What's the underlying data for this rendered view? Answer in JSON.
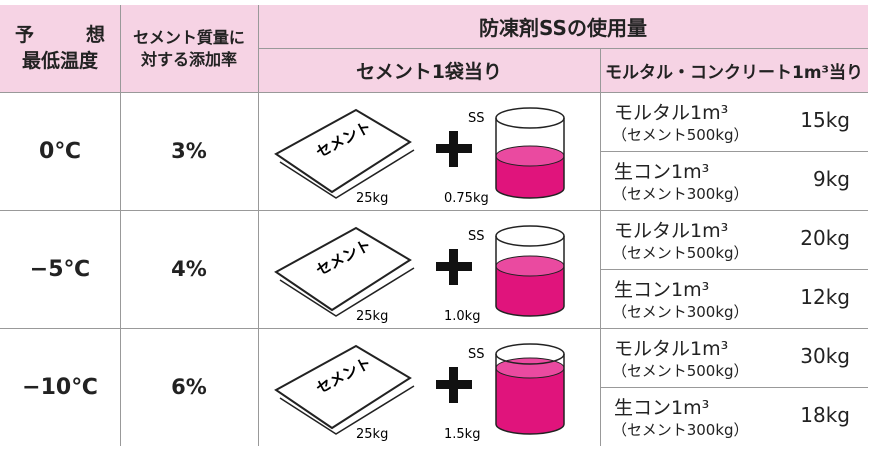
{
  "header": {
    "col1": [
      "予　想",
      "最低温度"
    ],
    "col2": [
      "セメント質量に",
      "対する添加率"
    ],
    "group": "防凍剤SSの使用量",
    "per_bag": "セメント1袋当り",
    "per_m3": "モルタル・コンクリート1m³当り"
  },
  "bag_text": "セメント",
  "rows": [
    {
      "temp": "0℃",
      "rate": "3%",
      "bag_weight": "25kg",
      "ss_label": "SS",
      "ss_amount": "0.75kg",
      "mixes": [
        {
          "name": "モルタル1m³",
          "note": "（セメント500kg）",
          "amount": "15kg"
        },
        {
          "name": "生コン1m³",
          "note": "（セメント300kg）",
          "amount": "9kg"
        }
      ]
    },
    {
      "temp": "−5℃",
      "rate": "4%",
      "bag_weight": "25kg",
      "ss_label": "SS",
      "ss_amount": "1.0kg",
      "mixes": [
        {
          "name": "モルタル1m³",
          "note": "（セメント500kg）",
          "amount": "20kg"
        },
        {
          "name": "生コン1m³",
          "note": "（セメント300kg）",
          "amount": "12kg"
        }
      ]
    },
    {
      "temp": "−10℃",
      "rate": "6%",
      "bag_weight": "25kg",
      "ss_label": "SS",
      "ss_amount": "1.5kg",
      "mixes": [
        {
          "name": "モルタル1m³",
          "note": "（セメント500kg）",
          "amount": "30kg"
        },
        {
          "name": "生コン1m³",
          "note": "（セメント300kg）",
          "amount": "18kg"
        }
      ]
    }
  ]
}
